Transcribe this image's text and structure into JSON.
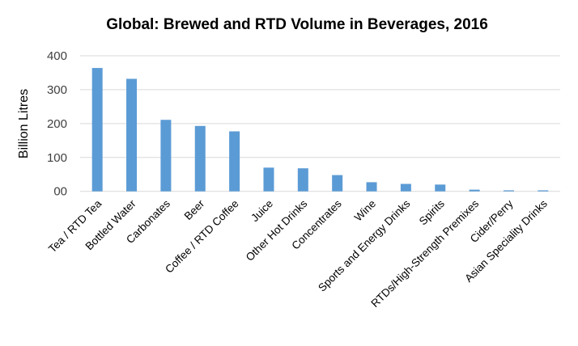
{
  "chart_data": {
    "type": "bar",
    "title": "Global: Brewed and RTD Volume in Beverages, 2016",
    "xlabel": "",
    "ylabel": "Billion Litres",
    "ylim": [
      0,
      400
    ],
    "yticks": [
      0,
      100,
      200,
      300,
      400
    ],
    "ytick_labels": [
      "00",
      "100",
      "200",
      "300",
      "400"
    ],
    "grid": true,
    "legend": "none",
    "bar_color": "#5B9BD5",
    "categories": [
      "Tea / RTD Tea",
      "Bottled Water",
      "Carbonates",
      "Beer",
      "Coffee / RTD Coffee",
      "Juice",
      "Other Hot Drinks",
      "Concentrates",
      "Wine",
      "Sports and Energy Drinks",
      "Spirits",
      "RTDs/High-Strength Premixes",
      "Cider/Perry",
      "Asian Speciality Drinks"
    ],
    "values": [
      364,
      332,
      211,
      193,
      177,
      70,
      68,
      48,
      27,
      22,
      20,
      5,
      3,
      3
    ]
  }
}
